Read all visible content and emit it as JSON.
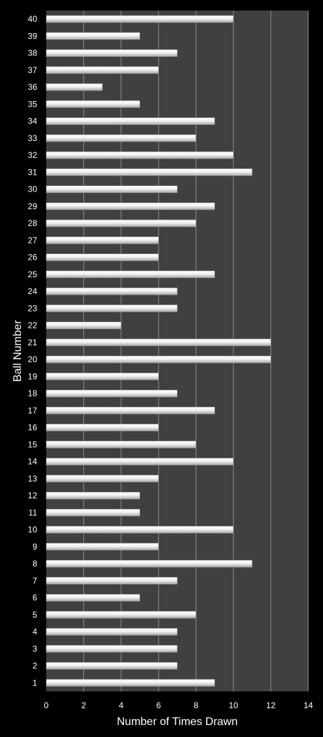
{
  "chart_data": {
    "type": "bar",
    "orientation": "horizontal",
    "title": "",
    "xlabel": "Number of Times Drawn",
    "ylabel": "Ball Number",
    "xlim": [
      0,
      14
    ],
    "xticks": [
      "0",
      "2",
      "4",
      "6",
      "8",
      "10",
      "12",
      "14"
    ],
    "grid": true,
    "legend": "none",
    "colors": {
      "background": "#000000",
      "plot_area": "#404040",
      "gridline": "#8c8c8c",
      "bar": "#e8e8e8",
      "text": "#ffffff"
    },
    "categories": [
      "1",
      "2",
      "3",
      "4",
      "5",
      "6",
      "7",
      "8",
      "9",
      "10",
      "11",
      "12",
      "13",
      "14",
      "15",
      "16",
      "17",
      "18",
      "19",
      "20",
      "21",
      "22",
      "23",
      "24",
      "25",
      "26",
      "27",
      "28",
      "29",
      "30",
      "31",
      "32",
      "33",
      "34",
      "35",
      "36",
      "37",
      "38",
      "39",
      "40"
    ],
    "values": [
      9,
      7,
      7,
      7,
      8,
      5,
      7,
      11,
      6,
      10,
      5,
      5,
      6,
      10,
      8,
      6,
      9,
      7,
      6,
      12,
      12,
      4,
      7,
      7,
      9,
      6,
      6,
      8,
      9,
      7,
      11,
      10,
      8,
      9,
      5,
      3,
      6,
      7,
      5,
      10
    ]
  }
}
